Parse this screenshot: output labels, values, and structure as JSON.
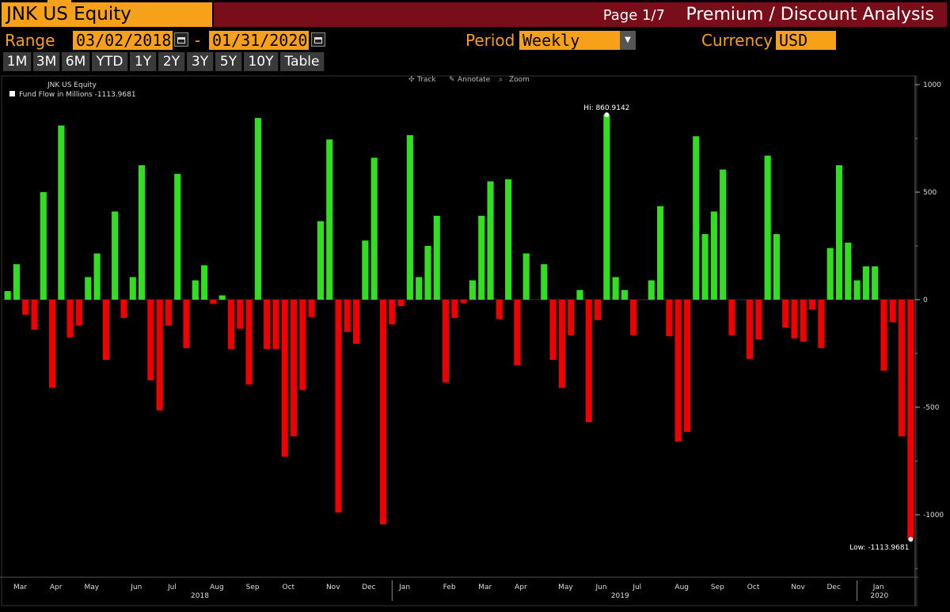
{
  "header": {
    "ticker": "JNK US Equity",
    "page": "Page 1/7",
    "title": "Premium / Discount Analysis"
  },
  "controls": {
    "range_label": "Range",
    "start_date": "03/02/2018",
    "dash": "-",
    "end_date": "01/31/2020",
    "period_label": "Period",
    "period_value": "Weekly",
    "currency_label": "Currency",
    "currency_value": "USD"
  },
  "range_buttons": [
    "1M",
    "3M",
    "6M",
    "YTD",
    "1Y",
    "2Y",
    "3Y",
    "5Y",
    "10Y",
    "Table"
  ],
  "toolbar": {
    "track": "Track",
    "annotate": "Annotate",
    "zoom": "Zoom"
  },
  "colors": {
    "positive": "#33dd22",
    "negative": "#ee0000",
    "accent": "#f7a11a",
    "title_bg": "#7a0d1a"
  },
  "chart_data": {
    "type": "bar",
    "legend_title": "JNK US Equity",
    "legend_entry": "Fund Flow in Millions -1113.9681",
    "ylim": [
      -1300,
      1000
    ],
    "y_ticks": [
      1000,
      500,
      0,
      -500,
      -1000
    ],
    "y_tick_labels": [
      "1000",
      "500",
      "0",
      "-500",
      "-1000"
    ],
    "hi_label": "Hi: 860.9142",
    "low_label": "Low: -1113.9681",
    "x_month_labels": [
      "Mar",
      "Apr",
      "May",
      "Jun",
      "Jul",
      "Aug",
      "Sep",
      "Oct",
      "Nov",
      "Dec",
      "Jan",
      "Feb",
      "Mar",
      "Apr",
      "May",
      "Jun",
      "Jul",
      "Aug",
      "Sep",
      "Oct",
      "Nov",
      "Dec",
      "Jan"
    ],
    "x_year_labels": [
      "2018",
      "2019",
      "2020"
    ],
    "values": [
      40,
      165,
      -70,
      -140,
      500,
      -410,
      810,
      -175,
      -120,
      105,
      215,
      -280,
      410,
      -85,
      105,
      625,
      -375,
      -515,
      -120,
      585,
      -225,
      90,
      160,
      -20,
      20,
      -230,
      -135,
      -395,
      845,
      -230,
      -230,
      -730,
      -635,
      -420,
      -80,
      365,
      745,
      -990,
      -150,
      -205,
      275,
      660,
      -1045,
      -115,
      -30,
      765,
      105,
      250,
      390,
      -385,
      -85,
      -15,
      90,
      390,
      550,
      -90,
      560,
      -305,
      215,
      0,
      165,
      -280,
      -410,
      -165,
      45,
      -570,
      -95,
      860,
      105,
      45,
      -165,
      0,
      90,
      435,
      -170,
      -660,
      -615,
      760,
      305,
      410,
      605,
      -165,
      0,
      -275,
      -185,
      670,
      305,
      -130,
      -180,
      -195,
      -45,
      -225,
      240,
      625,
      265,
      90,
      155,
      155,
      -330,
      -105,
      -635,
      -1114
    ]
  }
}
